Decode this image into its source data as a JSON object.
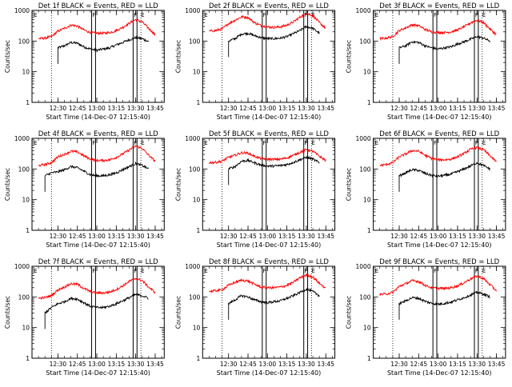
{
  "colors": {
    "events": "#000000",
    "lld": "#ff0000",
    "axis": "#000000"
  },
  "chart_data": [
    {
      "type": "line",
      "title": "Det 1f BLACK = Events, RED = LLD",
      "ylabel": "Counts/sec",
      "xlabel": "Start Time (14-Dec-07 12:15:40)",
      "ylog": true,
      "ylim": [
        1,
        1000
      ],
      "ytick_labels": [
        "1",
        "10",
        "100",
        "1000"
      ],
      "xtick_labels": [
        "12:30",
        "12:45",
        "13:00",
        "13:15",
        "13:30",
        "13:45"
      ],
      "markers": [
        "F",
        "F",
        "E"
      ],
      "series": [
        {
          "name": "Events",
          "x": [
            "12:30",
            "12:35",
            "12:40",
            "12:45",
            "12:50",
            "12:55",
            "13:00",
            "13:05",
            "13:10",
            "13:15",
            "13:20",
            "13:25",
            "13:30",
            "13:35",
            "13:40"
          ],
          "values": [
            60,
            70,
            90,
            85,
            65,
            55,
            50,
            55,
            60,
            75,
            90,
            110,
            130,
            120,
            95
          ]
        },
        {
          "name": "LLD",
          "x": [
            "12:15",
            "12:20",
            "12:25",
            "12:30",
            "12:35",
            "12:40",
            "12:45",
            "12:50",
            "12:55",
            "13:00",
            "13:05",
            "13:10",
            "13:15",
            "13:20",
            "13:25",
            "13:30",
            "13:35",
            "13:40",
            "13:45"
          ],
          "values": [
            120,
            125,
            140,
            210,
            260,
            330,
            310,
            230,
            190,
            180,
            180,
            190,
            220,
            280,
            380,
            500,
            420,
            260,
            160
          ]
        }
      ]
    },
    {
      "type": "line",
      "title": "Det 2f BLACK = Events, RED = LLD",
      "ylabel": "Counts/sec",
      "xlabel": "Start Time (14-Dec-07 12:15:40)",
      "ylog": true,
      "ylim": [
        1,
        1000
      ],
      "ytick_labels": [
        "1",
        "10",
        "100",
        "1000"
      ],
      "xtick_labels": [
        "12:30",
        "12:45",
        "13:00",
        "13:15",
        "13:30",
        "13:45"
      ],
      "markers": [
        "F",
        "F",
        "E"
      ],
      "series": [
        {
          "name": "Events",
          "x": [
            "12:30",
            "12:35",
            "12:40",
            "12:45",
            "12:50",
            "12:55",
            "13:00",
            "13:05",
            "13:10",
            "13:15",
            "13:20",
            "13:25",
            "13:30",
            "13:35",
            "13:40"
          ],
          "values": [
            100,
            120,
            170,
            180,
            150,
            130,
            120,
            120,
            125,
            140,
            175,
            220,
            300,
            260,
            180
          ]
        },
        {
          "name": "LLD",
          "x": [
            "12:15",
            "12:20",
            "12:25",
            "12:30",
            "12:35",
            "12:40",
            "12:45",
            "12:50",
            "12:55",
            "13:00",
            "13:05",
            "13:10",
            "13:15",
            "13:20",
            "13:25",
            "13:30",
            "13:35",
            "13:40",
            "13:45"
          ],
          "values": [
            210,
            220,
            250,
            370,
            480,
            620,
            590,
            400,
            320,
            290,
            280,
            290,
            330,
            420,
            600,
            800,
            680,
            400,
            260
          ]
        }
      ]
    },
    {
      "type": "line",
      "title": "Det 3f BLACK = Events, RED = LLD",
      "ylabel": "Counts/sec",
      "xlabel": "Start Time (14-Dec-07 12:15:40)",
      "ylog": true,
      "ylim": [
        1,
        1000
      ],
      "ytick_labels": [
        "1",
        "10",
        "100",
        "1000"
      ],
      "xtick_labels": [
        "12:30",
        "12:45",
        "13:00",
        "13:15",
        "13:30",
        "13:45"
      ],
      "markers": [
        "F",
        "F",
        "E"
      ],
      "series": [
        {
          "name": "Events",
          "x": [
            "12:30",
            "12:35",
            "12:40",
            "12:45",
            "12:50",
            "12:55",
            "13:00",
            "13:05",
            "13:10",
            "13:15",
            "13:20",
            "13:25",
            "13:30",
            "13:35",
            "13:40"
          ],
          "values": [
            60,
            70,
            95,
            90,
            70,
            60,
            55,
            60,
            65,
            80,
            95,
            115,
            140,
            125,
            100
          ]
        },
        {
          "name": "LLD",
          "x": [
            "12:15",
            "12:20",
            "12:25",
            "12:30",
            "12:35",
            "12:40",
            "12:45",
            "12:50",
            "12:55",
            "13:00",
            "13:05",
            "13:10",
            "13:15",
            "13:20",
            "13:25",
            "13:30",
            "13:35",
            "13:40",
            "13:45"
          ],
          "values": [
            120,
            125,
            140,
            220,
            270,
            340,
            320,
            240,
            200,
            190,
            190,
            200,
            230,
            290,
            390,
            480,
            400,
            250,
            160
          ]
        }
      ]
    },
    {
      "type": "line",
      "title": "Det 4f BLACK = Events, RED = LLD",
      "ylabel": "Counts/sec",
      "xlabel": "Start Time (14-Dec-07 12:15:40)",
      "ylog": true,
      "ylim": [
        1,
        1000
      ],
      "ytick_labels": [
        "1",
        "10",
        "100",
        "1000"
      ],
      "xtick_labels": [
        "12:30",
        "12:45",
        "13:00",
        "13:15",
        "13:30",
        "13:45"
      ],
      "markers": [
        "F",
        "F",
        "E"
      ],
      "series": [
        {
          "name": "Events",
          "x": [
            "12:20",
            "12:25",
            "12:30",
            "12:35",
            "12:40",
            "12:45",
            "12:50",
            "12:55",
            "13:00",
            "13:05",
            "13:10",
            "13:15",
            "13:20",
            "13:25",
            "13:30",
            "13:35",
            "13:40"
          ],
          "values": [
            60,
            75,
            80,
            95,
            120,
            110,
            85,
            65,
            60,
            60,
            65,
            75,
            95,
            120,
            150,
            130,
            100
          ]
        },
        {
          "name": "LLD",
          "x": [
            "12:15",
            "12:20",
            "12:25",
            "12:30",
            "12:35",
            "12:40",
            "12:45",
            "12:50",
            "12:55",
            "13:00",
            "13:05",
            "13:10",
            "13:15",
            "13:20",
            "13:25",
            "13:30",
            "13:35",
            "13:40",
            "13:45"
          ],
          "values": [
            130,
            140,
            160,
            250,
            300,
            380,
            360,
            270,
            210,
            190,
            190,
            200,
            240,
            310,
            420,
            560,
            470,
            280,
            180
          ]
        }
      ]
    },
    {
      "type": "line",
      "title": "Det 5f BLACK = Events, RED = LLD",
      "ylabel": "Counts/sec",
      "xlabel": "Start Time (14-Dec-07 12:15:40)",
      "ylog": true,
      "ylim": [
        1,
        1000
      ],
      "ytick_labels": [
        "1",
        "10",
        "100",
        "1000"
      ],
      "xtick_labels": [
        "12:30",
        "12:45",
        "13:00",
        "13:15",
        "13:30",
        "13:45"
      ],
      "markers": [
        "F",
        "F",
        "E"
      ],
      "series": [
        {
          "name": "Events",
          "x": [
            "12:30",
            "12:35",
            "12:40",
            "12:45",
            "12:50",
            "12:55",
            "13:00",
            "13:05",
            "13:10",
            "13:15",
            "13:20",
            "13:25",
            "13:30",
            "13:35",
            "13:40"
          ],
          "values": [
            100,
            120,
            180,
            190,
            160,
            135,
            125,
            125,
            130,
            140,
            165,
            200,
            240,
            210,
            160
          ]
        },
        {
          "name": "LLD",
          "x": [
            "12:15",
            "12:20",
            "12:25",
            "12:30",
            "12:35",
            "12:40",
            "12:45",
            "12:50",
            "12:55",
            "13:00",
            "13:05",
            "13:10",
            "13:15",
            "13:20",
            "13:25",
            "13:30",
            "13:35",
            "13:40",
            "13:45"
          ],
          "values": [
            160,
            165,
            180,
            240,
            280,
            340,
            330,
            260,
            220,
            210,
            205,
            210,
            230,
            280,
            350,
            430,
            380,
            260,
            190
          ]
        }
      ]
    },
    {
      "type": "line",
      "title": "Det 6f BLACK = Events, RED = LLD",
      "ylabel": "Counts/sec",
      "xlabel": "Start Time (14-Dec-07 12:15:40)",
      "ylog": true,
      "ylim": [
        1,
        1000
      ],
      "ytick_labels": [
        "1",
        "10",
        "100",
        "1000"
      ],
      "xtick_labels": [
        "12:30",
        "12:45",
        "13:00",
        "13:15",
        "13:30",
        "13:45"
      ],
      "markers": [
        "F",
        "F",
        "E"
      ],
      "series": [
        {
          "name": "Events",
          "x": [
            "12:30",
            "12:35",
            "12:40",
            "12:45",
            "12:50",
            "12:55",
            "13:00",
            "13:05",
            "13:10",
            "13:15",
            "13:20",
            "13:25",
            "13:30",
            "13:35",
            "13:40"
          ],
          "values": [
            60,
            75,
            95,
            90,
            72,
            62,
            58,
            62,
            68,
            82,
            100,
            125,
            160,
            130,
            100
          ]
        },
        {
          "name": "LLD",
          "x": [
            "12:15",
            "12:20",
            "12:25",
            "12:30",
            "12:35",
            "12:40",
            "12:45",
            "12:50",
            "12:55",
            "13:00",
            "13:05",
            "13:10",
            "13:15",
            "13:20",
            "13:25",
            "13:30",
            "13:35",
            "13:40",
            "13:45"
          ],
          "values": [
            130,
            140,
            160,
            250,
            310,
            400,
            380,
            280,
            220,
            200,
            200,
            210,
            250,
            320,
            440,
            500,
            430,
            270,
            170
          ]
        }
      ]
    },
    {
      "type": "line",
      "title": "Det 7f BLACK = Events, RED = LLD",
      "ylabel": "Counts/sec",
      "xlabel": "Start Time (14-Dec-07 12:15:40)",
      "ylog": true,
      "ylim": [
        1,
        1000
      ],
      "ytick_labels": [
        "1",
        "10",
        "100",
        "1000"
      ],
      "xtick_labels": [
        "12:30",
        "12:45",
        "13:00",
        "13:15",
        "13:30",
        "13:45"
      ],
      "markers": [
        "F",
        "F",
        "E"
      ],
      "series": [
        {
          "name": "Events",
          "x": [
            "12:20",
            "12:25",
            "12:30",
            "12:35",
            "12:40",
            "12:45",
            "12:50",
            "12:55",
            "13:00",
            "13:05",
            "13:10",
            "13:15",
            "13:20",
            "13:25",
            "13:30",
            "13:35",
            "13:40"
          ],
          "values": [
            30,
            45,
            60,
            70,
            90,
            85,
            65,
            50,
            45,
            45,
            50,
            60,
            75,
            95,
            120,
            110,
            90
          ]
        },
        {
          "name": "LLD",
          "x": [
            "12:15",
            "12:20",
            "12:25",
            "12:30",
            "12:35",
            "12:40",
            "12:45",
            "12:50",
            "12:55",
            "13:00",
            "13:05",
            "13:10",
            "13:15",
            "13:20",
            "13:25",
            "13:30",
            "13:35",
            "13:40",
            "13:45"
          ],
          "values": [
            90,
            95,
            110,
            170,
            210,
            270,
            260,
            190,
            150,
            135,
            135,
            145,
            175,
            230,
            320,
            400,
            340,
            210,
            140
          ]
        }
      ]
    },
    {
      "type": "line",
      "title": "Det 8f BLACK = Events, RED = LLD",
      "ylabel": "Counts/sec",
      "xlabel": "Start Time (14-Dec-07 12:15:40)",
      "ylog": true,
      "ylim": [
        1,
        1000
      ],
      "ytick_labels": [
        "1",
        "10",
        "100",
        "1000"
      ],
      "xtick_labels": [
        "12:30",
        "12:45",
        "13:00",
        "13:15",
        "13:30",
        "13:45"
      ],
      "markers": [
        "F",
        "F",
        "E"
      ],
      "series": [
        {
          "name": "Events",
          "x": [
            "12:30",
            "12:35",
            "12:40",
            "12:45",
            "12:50",
            "12:55",
            "13:00",
            "13:05",
            "13:10",
            "13:15",
            "13:20",
            "13:25",
            "13:30",
            "13:35",
            "13:40"
          ],
          "values": [
            60,
            80,
            110,
            100,
            80,
            70,
            65,
            70,
            75,
            90,
            110,
            140,
            180,
            150,
            110
          ]
        },
        {
          "name": "LLD",
          "x": [
            "12:15",
            "12:20",
            "12:25",
            "12:30",
            "12:35",
            "12:40",
            "12:45",
            "12:50",
            "12:55",
            "13:00",
            "13:05",
            "13:10",
            "13:15",
            "13:20",
            "13:25",
            "13:30",
            "13:35",
            "13:40",
            "13:45"
          ],
          "values": [
            150,
            160,
            170,
            240,
            300,
            350,
            330,
            260,
            210,
            200,
            200,
            210,
            240,
            300,
            420,
            520,
            450,
            280,
            190
          ]
        }
      ]
    },
    {
      "type": "line",
      "title": "Det 9f BLACK = Events, RED = LLD",
      "ylabel": "Counts/sec",
      "xlabel": "Start Time (14-Dec-07 12:15:40)",
      "ylog": true,
      "ylim": [
        1,
        1000
      ],
      "ytick_labels": [
        "1",
        "10",
        "100",
        "1000"
      ],
      "xtick_labels": [
        "12:30",
        "12:45",
        "13:00",
        "13:15",
        "13:30",
        "13:45"
      ],
      "markers": [
        "F",
        "F",
        "E"
      ],
      "series": [
        {
          "name": "Events",
          "x": [
            "12:30",
            "12:35",
            "12:40",
            "12:45",
            "12:50",
            "12:55",
            "13:00",
            "13:05",
            "13:10",
            "13:15",
            "13:20",
            "13:25",
            "13:30",
            "13:35",
            "13:40"
          ],
          "values": [
            60,
            75,
            95,
            90,
            72,
            62,
            58,
            62,
            68,
            80,
            95,
            115,
            140,
            125,
            100
          ]
        },
        {
          "name": "LLD",
          "x": [
            "12:15",
            "12:20",
            "12:25",
            "12:30",
            "12:35",
            "12:40",
            "12:45",
            "12:50",
            "12:55",
            "13:00",
            "13:05",
            "13:10",
            "13:15",
            "13:20",
            "13:25",
            "13:30",
            "13:35",
            "13:40",
            "13:45"
          ],
          "values": [
            120,
            125,
            140,
            220,
            270,
            340,
            320,
            240,
            200,
            190,
            190,
            200,
            230,
            290,
            390,
            480,
            400,
            250,
            160
          ]
        }
      ]
    }
  ]
}
